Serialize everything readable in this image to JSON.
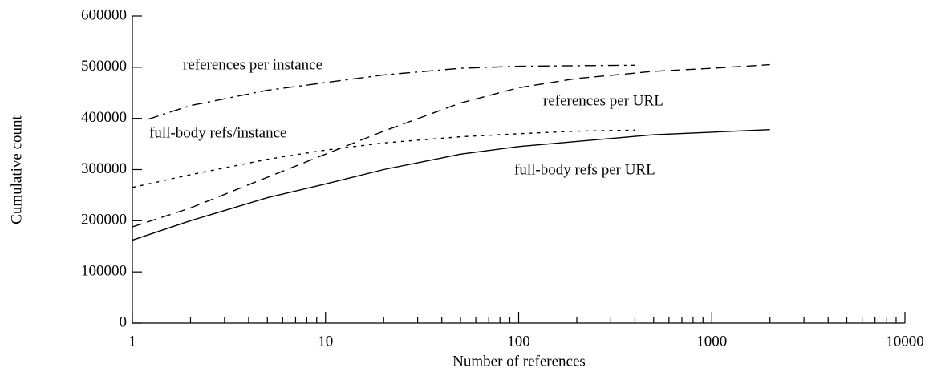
{
  "chart_data": {
    "type": "line",
    "xlabel": "Number of references",
    "ylabel": "Cumulative count",
    "xscale": "log",
    "xlim": [
      1,
      10000
    ],
    "xticks": [
      1,
      10,
      100,
      1000,
      10000
    ],
    "ylim": [
      0,
      600000
    ],
    "yticks": [
      0,
      100000,
      200000,
      300000,
      400000,
      500000,
      600000
    ],
    "series": [
      {
        "name": "references per instance",
        "color": "#000000",
        "linestyle": "dashdot",
        "x": [
          1.2,
          2,
          5,
          10,
          20,
          50,
          100,
          200,
          400
        ],
        "values": [
          398000,
          425000,
          455000,
          470000,
          485000,
          498000,
          502000,
          503000,
          504000
        ]
      },
      {
        "name": "references per URL",
        "color": "#000000",
        "linestyle": "dashed",
        "x": [
          1,
          2,
          5,
          10,
          20,
          50,
          100,
          200,
          500,
          1000,
          2000
        ],
        "values": [
          188000,
          225000,
          285000,
          330000,
          375000,
          430000,
          460000,
          478000,
          492000,
          498000,
          505000
        ]
      },
      {
        "name": "full-body refs/instance",
        "color": "#000000",
        "linestyle": "dotted",
        "x": [
          1,
          2,
          5,
          10,
          20,
          50,
          100,
          200,
          400
        ],
        "values": [
          265000,
          290000,
          320000,
          338000,
          352000,
          364000,
          370000,
          375000,
          377000
        ]
      },
      {
        "name": "full-body refs per URL",
        "color": "#000000",
        "linestyle": "solid",
        "x": [
          1,
          2,
          5,
          10,
          20,
          50,
          100,
          200,
          500,
          1000,
          2000
        ],
        "values": [
          162000,
          200000,
          245000,
          272000,
          300000,
          330000,
          345000,
          355000,
          368000,
          373000,
          378000
        ]
      }
    ]
  }
}
